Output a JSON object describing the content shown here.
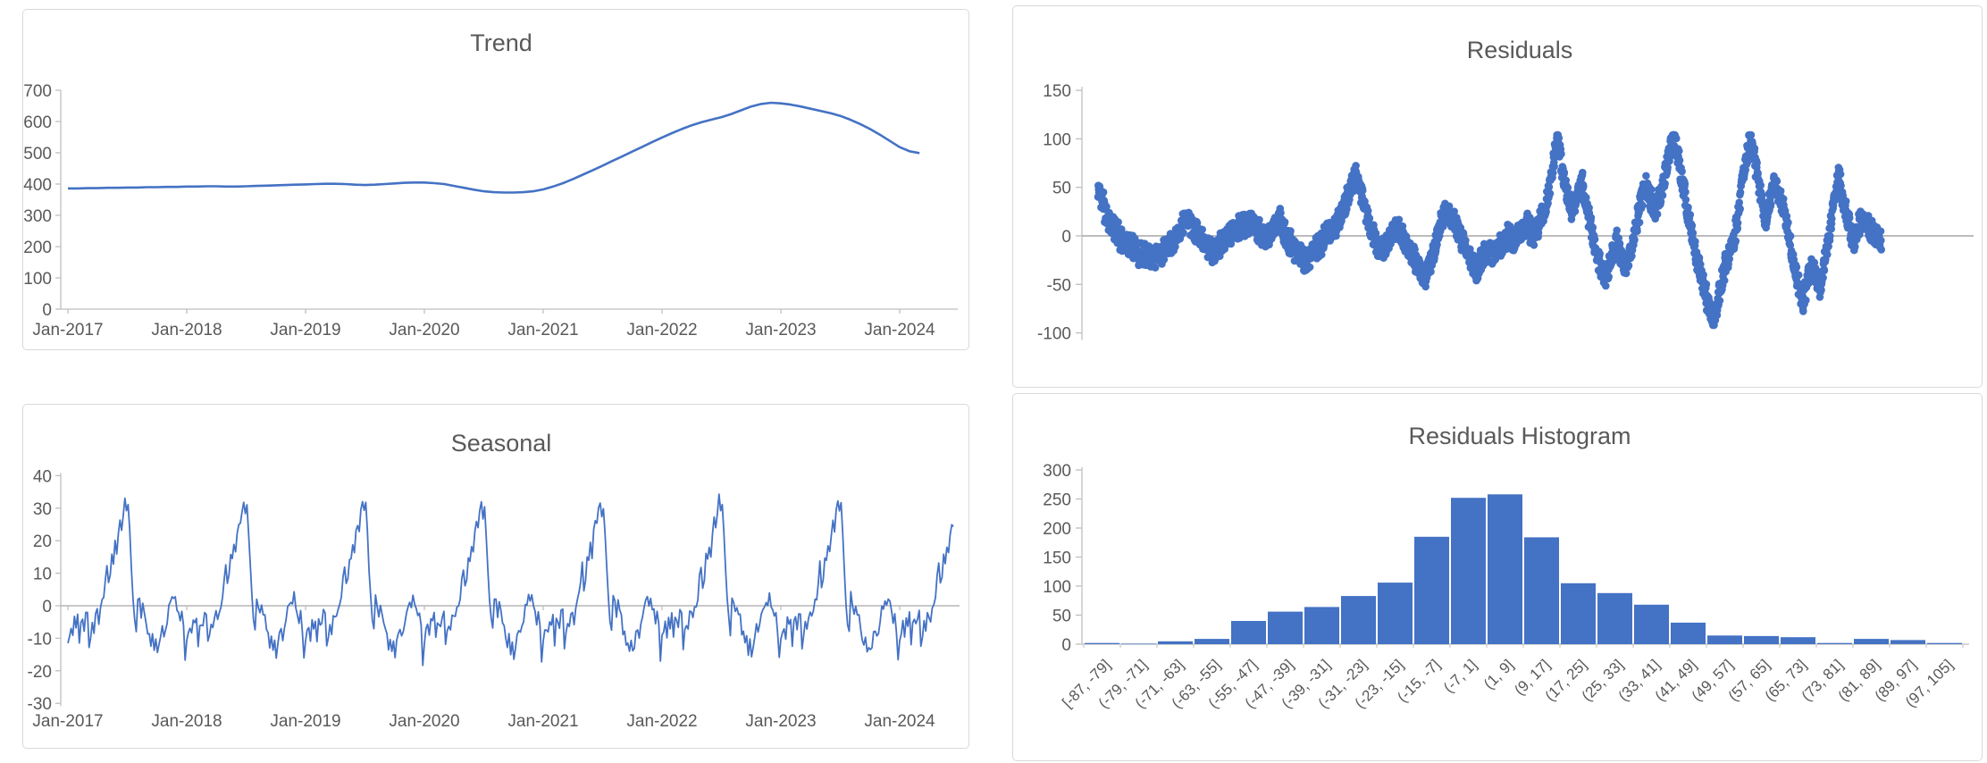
{
  "colors": {
    "series_blue": "#4472C4",
    "axis_line": "#BFBFBF",
    "zero_line": "#A6A6A6",
    "tick_text": "#595959",
    "title_text": "#595959",
    "chart_border": "#D9D9D9",
    "background": "#FFFFFF"
  },
  "chart_data": [
    {
      "type": "line",
      "title": "Trend",
      "xlabel": "",
      "ylabel": "",
      "ylim": [
        0,
        700
      ],
      "y_ticks": [
        700,
        600,
        500,
        400,
        300,
        200,
        100,
        0
      ],
      "x_tick_labels": [
        "Jan-2017",
        "Jan-2018",
        "Jan-2019",
        "Jan-2020",
        "Jan-2021",
        "Jan-2022",
        "Jan-2023",
        "Jan-2024"
      ],
      "x_start": "Jan-2017",
      "x_interval": "monthly",
      "grid": false,
      "legend": "none",
      "values": [
        386,
        386,
        387,
        387,
        388,
        388,
        389,
        389,
        390,
        390,
        391,
        391,
        392,
        392,
        393,
        393,
        392,
        392,
        393,
        394,
        395,
        396,
        397,
        398,
        399,
        400,
        401,
        401,
        400,
        398,
        397,
        398,
        400,
        402,
        404,
        405,
        405,
        403,
        400,
        394,
        388,
        382,
        377,
        374,
        373,
        373,
        374,
        377,
        383,
        392,
        403,
        416,
        430,
        444,
        459,
        474,
        489,
        504,
        519,
        534,
        549,
        563,
        576,
        588,
        598,
        606,
        614,
        624,
        636,
        648,
        656,
        660,
        658,
        654,
        648,
        641,
        634,
        627,
        618,
        606,
        592,
        576,
        558,
        538,
        518,
        505,
        499
      ]
    },
    {
      "type": "scatter",
      "title": "Residuals",
      "xlabel": "",
      "ylabel": "",
      "ylim": [
        -100,
        150
      ],
      "y_ticks": [
        150,
        100,
        50,
        0,
        -50,
        -100
      ],
      "x_tick_labels": [],
      "grid": "zero-line-only",
      "legend": "none",
      "points_total": 2600,
      "note": "dense daily residual scatter; anchors are [time-fraction, value] read from the plot envelope",
      "anchors": [
        [
          0,
          48
        ],
        [
          0.005,
          38
        ],
        [
          0.01,
          22
        ],
        [
          0.015,
          12
        ],
        [
          0.02,
          8
        ],
        [
          0.03,
          -4
        ],
        [
          0.04,
          -10
        ],
        [
          0.05,
          -16
        ],
        [
          0.06,
          -20
        ],
        [
          0.07,
          -22
        ],
        [
          0.08,
          -18
        ],
        [
          0.09,
          -10
        ],
        [
          0.1,
          0
        ],
        [
          0.107,
          12
        ],
        [
          0.113,
          18
        ],
        [
          0.12,
          8
        ],
        [
          0.13,
          0
        ],
        [
          0.14,
          -12
        ],
        [
          0.148,
          -20
        ],
        [
          0.155,
          -10
        ],
        [
          0.165,
          -2
        ],
        [
          0.175,
          6
        ],
        [
          0.185,
          10
        ],
        [
          0.195,
          14
        ],
        [
          0.205,
          4
        ],
        [
          0.215,
          -4
        ],
        [
          0.225,
          10
        ],
        [
          0.232,
          16
        ],
        [
          0.24,
          -2
        ],
        [
          0.25,
          -12
        ],
        [
          0.258,
          -20
        ],
        [
          0.266,
          -28
        ],
        [
          0.275,
          -16
        ],
        [
          0.285,
          -8
        ],
        [
          0.295,
          6
        ],
        [
          0.305,
          14
        ],
        [
          0.315,
          30
        ],
        [
          0.322,
          48
        ],
        [
          0.328,
          65
        ],
        [
          0.334,
          50
        ],
        [
          0.34,
          28
        ],
        [
          0.348,
          8
        ],
        [
          0.356,
          -8
        ],
        [
          0.364,
          -14
        ],
        [
          0.372,
          -4
        ],
        [
          0.38,
          8
        ],
        [
          0.388,
          2
        ],
        [
          0.396,
          -12
        ],
        [
          0.404,
          -24
        ],
        [
          0.41,
          -36
        ],
        [
          0.417,
          -42
        ],
        [
          0.424,
          -28
        ],
        [
          0.43,
          -10
        ],
        [
          0.437,
          12
        ],
        [
          0.444,
          26
        ],
        [
          0.452,
          18
        ],
        [
          0.46,
          4
        ],
        [
          0.468,
          -10
        ],
        [
          0.476,
          -24
        ],
        [
          0.484,
          -34
        ],
        [
          0.492,
          -22
        ],
        [
          0.5,
          -14
        ],
        [
          0.508,
          -20
        ],
        [
          0.516,
          -8
        ],
        [
          0.524,
          2
        ],
        [
          0.532,
          -6
        ],
        [
          0.54,
          6
        ],
        [
          0.548,
          12
        ],
        [
          0.556,
          -2
        ],
        [
          0.564,
          14
        ],
        [
          0.572,
          30
        ],
        [
          0.578,
          55
        ],
        [
          0.583,
          85
        ],
        [
          0.587,
          100
        ],
        [
          0.592,
          70
        ],
        [
          0.598,
          45
        ],
        [
          0.605,
          25
        ],
        [
          0.612,
          40
        ],
        [
          0.618,
          55
        ],
        [
          0.624,
          30
        ],
        [
          0.63,
          5
        ],
        [
          0.636,
          -18
        ],
        [
          0.642,
          -32
        ],
        [
          0.648,
          -40
        ],
        [
          0.655,
          -25
        ],
        [
          0.661,
          -5
        ],
        [
          0.667,
          -18
        ],
        [
          0.673,
          -30
        ],
        [
          0.68,
          -18
        ],
        [
          0.687,
          10
        ],
        [
          0.693,
          35
        ],
        [
          0.699,
          52
        ],
        [
          0.705,
          38
        ],
        [
          0.712,
          25
        ],
        [
          0.718,
          45
        ],
        [
          0.724,
          65
        ],
        [
          0.73,
          88
        ],
        [
          0.735,
          103
        ],
        [
          0.74,
          82
        ],
        [
          0.746,
          55
        ],
        [
          0.752,
          28
        ],
        [
          0.758,
          2
        ],
        [
          0.764,
          -22
        ],
        [
          0.77,
          -42
        ],
        [
          0.776,
          -62
        ],
        [
          0.782,
          -80
        ],
        [
          0.787,
          -90
        ],
        [
          0.792,
          -62
        ],
        [
          0.798,
          -38
        ],
        [
          0.805,
          -20
        ],
        [
          0.812,
          -2
        ],
        [
          0.818,
          28
        ],
        [
          0.824,
          62
        ],
        [
          0.829,
          88
        ],
        [
          0.833,
          100
        ],
        [
          0.838,
          78
        ],
        [
          0.843,
          55
        ],
        [
          0.848,
          30
        ],
        [
          0.853,
          18
        ],
        [
          0.858,
          38
        ],
        [
          0.863,
          55
        ],
        [
          0.868,
          45
        ],
        [
          0.874,
          28
        ],
        [
          0.88,
          8
        ],
        [
          0.885,
          -15
        ],
        [
          0.89,
          -35
        ],
        [
          0.895,
          -55
        ],
        [
          0.9,
          -68
        ],
        [
          0.905,
          -48
        ],
        [
          0.91,
          -28
        ],
        [
          0.915,
          -38
        ],
        [
          0.92,
          -55
        ],
        [
          0.925,
          -40
        ],
        [
          0.93,
          -15
        ],
        [
          0.935,
          10
        ],
        [
          0.94,
          40
        ],
        [
          0.945,
          60
        ],
        [
          0.95,
          42
        ],
        [
          0.955,
          22
        ],
        [
          0.96,
          5
        ],
        [
          0.965,
          -8
        ],
        [
          0.97,
          8
        ],
        [
          0.975,
          18
        ],
        [
          0.98,
          12
        ],
        [
          0.985,
          6
        ],
        [
          0.99,
          2
        ],
        [
          1,
          -3
        ]
      ]
    },
    {
      "type": "line",
      "title": "Seasonal",
      "xlabel": "",
      "ylabel": "",
      "ylim": [
        -30,
        40
      ],
      "y_ticks": [
        40,
        30,
        20,
        10,
        0,
        -10,
        -20,
        -30
      ],
      "x_tick_labels": [
        "Jan-2017",
        "Jan-2018",
        "Jan-2019",
        "Jan-2020",
        "Jan-2021",
        "Jan-2022",
        "Jan-2023",
        "Jan-2024"
      ],
      "grid": "zero-line-only",
      "legend": "none",
      "note": "identical annual pattern repeated each year; 73 samples per year (~5-day step), peak +33 mid-year, deep dip -17 late December",
      "years_full": 7,
      "partial_points": 34,
      "annual_pattern": [
        -10.5,
        -8.5,
        -6,
        -9.5,
        -4,
        -6,
        -3.5,
        -11,
        -5,
        -4.5,
        -7,
        -2.5,
        -1.5,
        -12,
        -8.5,
        -5.5,
        -7.5,
        -3,
        -2,
        -4.5,
        -1,
        0.5,
        3,
        8,
        12.5,
        6,
        9,
        15,
        13,
        19.5,
        16,
        22,
        26,
        24,
        29,
        33,
        28,
        31,
        22,
        12,
        2,
        -5,
        -8,
        3,
        1,
        -2.5,
        0.5,
        -1.5,
        -4,
        -7.5,
        -9,
        -12,
        -10,
        -14,
        -11.5,
        -15,
        -12,
        -9,
        -6.5,
        -9.5,
        -7,
        -4,
        -1,
        0.5,
        2,
        1,
        3.5,
        0,
        -2,
        -4.5,
        -3,
        -7,
        -17
      ]
    },
    {
      "type": "bar",
      "title": "Residuals Histogram",
      "xlabel": "",
      "ylabel": "",
      "ylim": [
        0,
        300
      ],
      "y_ticks": [
        300,
        250,
        200,
        150,
        100,
        50,
        0
      ],
      "grid": false,
      "legend": "none",
      "categories": [
        "[-87, -79]",
        "(-79, -71]",
        "(-71, -63]",
        "(-63, -55]",
        "(-55, -47]",
        "(-47, -39]",
        "(-39, -31]",
        "(-31, -23]",
        "(-23, -15]",
        "(-15, -7]",
        "(-7, 1]",
        "(1, 9]",
        "(9, 17]",
        "(17, 25]",
        "(25, 33]",
        "(33, 41]",
        "(41, 49]",
        "(49, 57]",
        "(57, 65]",
        "(65, 73]",
        "(73, 81]",
        "(81, 89]",
        "(89, 97]",
        "(97, 105]"
      ],
      "values": [
        2,
        1,
        5,
        9,
        40,
        56,
        64,
        83,
        106,
        185,
        252,
        258,
        184,
        105,
        88,
        68,
        37,
        15,
        14,
        12,
        2,
        9,
        7,
        2
      ]
    }
  ]
}
